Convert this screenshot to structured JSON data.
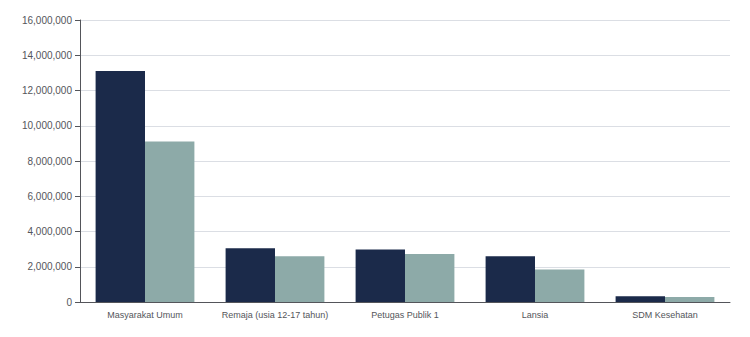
{
  "chart_data": {
    "type": "bar",
    "categories": [
      "Masyarakat Umum",
      "Remaja (usia 12-17 tahun)",
      "Petugas Publik 1",
      "Lansia",
      "SDM Kesehatan"
    ],
    "series": [
      {
        "color": "#1B2A4A",
        "values": [
          13100000,
          3050000,
          2980000,
          2600000,
          320000
        ]
      },
      {
        "color": "#8DAAA8",
        "values": [
          9100000,
          2600000,
          2720000,
          1850000,
          290000
        ]
      }
    ],
    "ylim": [
      0,
      16000000
    ],
    "yticks": [
      0,
      {
        "value": 2000000,
        "label": "2,000,000"
      },
      {
        "value": 4000000,
        "label": "4,000,000"
      },
      {
        "value": 6000000,
        "label": "6,000,000"
      },
      {
        "value": 8000000,
        "label": "8,000,000"
      },
      {
        "value": 10000000,
        "label": "10,000,000"
      },
      {
        "value": 12000000,
        "label": "12,000,000"
      },
      {
        "value": 14000000,
        "label": "14,000,000"
      },
      {
        "value": 16000000,
        "label": "16,000,000"
      }
    ],
    "grid": true
  }
}
